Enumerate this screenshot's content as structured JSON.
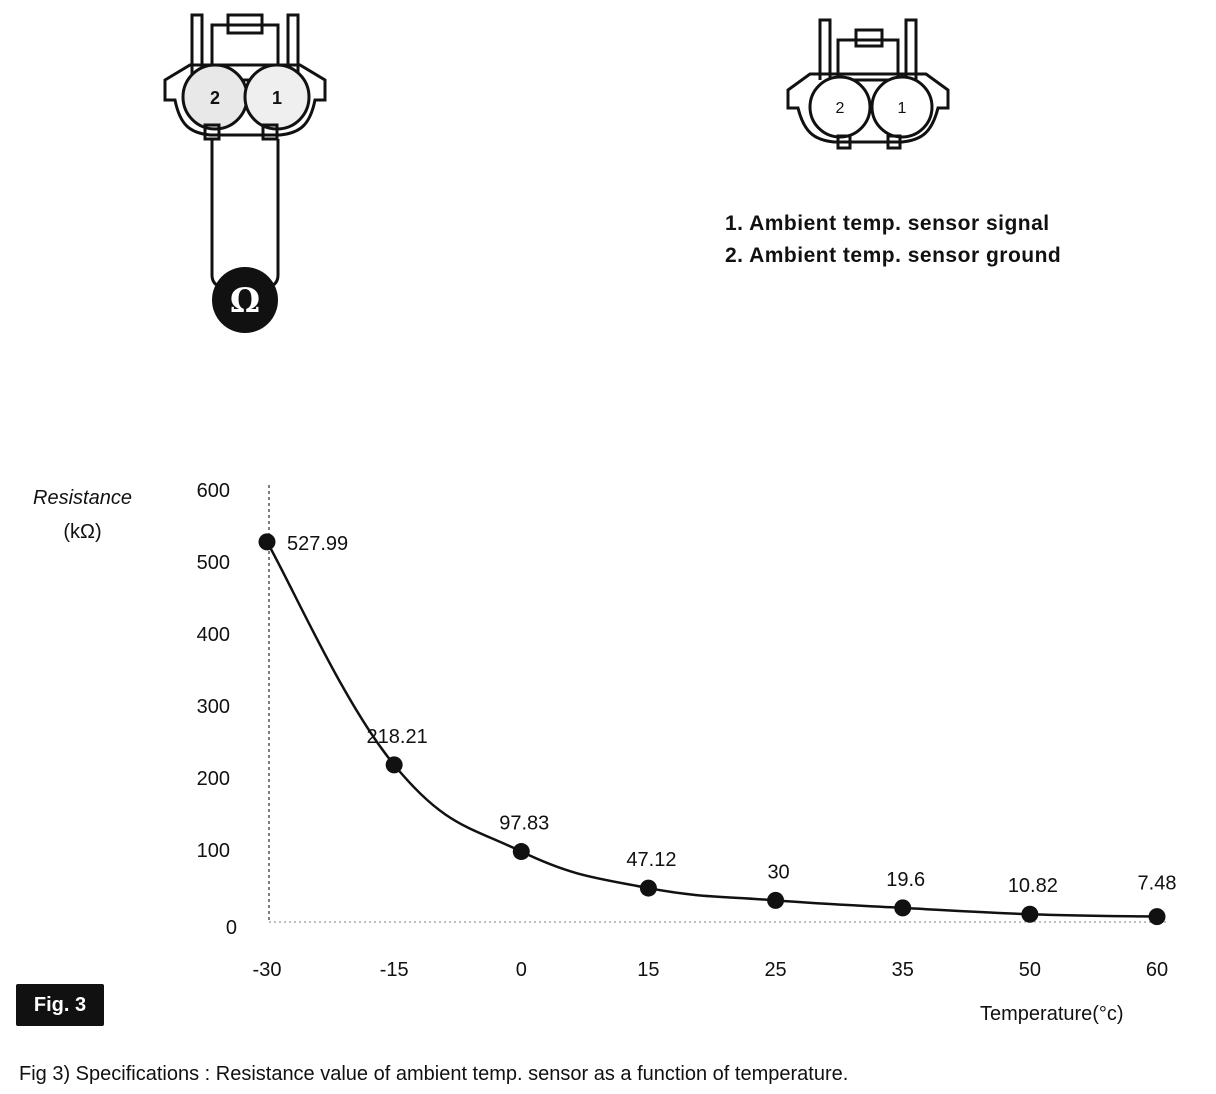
{
  "connectors": {
    "left": {
      "pin2": "2",
      "pin1": "1",
      "meter_symbol": "Ω"
    },
    "right": {
      "pin2": "2",
      "pin1": "1"
    }
  },
  "pin_legend": {
    "items": [
      "1. Ambient temp. sensor signal",
      "2. Ambient temp. sensor ground"
    ]
  },
  "chart_data": {
    "type": "line",
    "ylabel_line1": "Resistance",
    "ylabel_line2": "(kΩ)",
    "xlabel": "Temperature(°c)",
    "categories": [
      "-30",
      "-15",
      "0",
      "15",
      "25",
      "35",
      "50",
      "60"
    ],
    "values": [
      527.99,
      218.21,
      97.83,
      47.12,
      30,
      19.6,
      10.82,
      7.48
    ],
    "data_labels": [
      "527.99",
      "218.21",
      "97.83",
      "47.12",
      "30",
      "19.6",
      "10.82",
      "7.48"
    ],
    "yticks": [
      0,
      100,
      200,
      300,
      400,
      500,
      600
    ],
    "ylim": [
      0,
      600
    ],
    "grid": false,
    "markers": true,
    "line_color": "#111111"
  },
  "fig_badge": "Fig. 3",
  "caption": "Fig 3) Specifications : Resistance value of ambient temp. sensor as a function of temperature."
}
